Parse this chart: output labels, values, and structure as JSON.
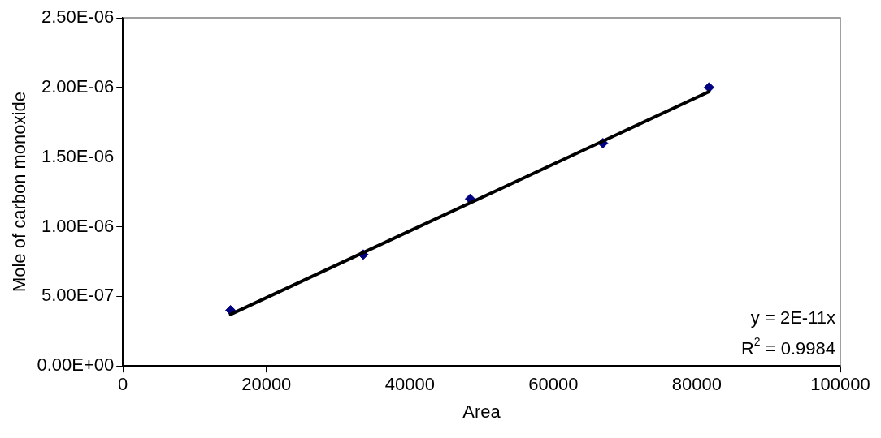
{
  "chart_data": {
    "type": "scatter",
    "xlabel": "Area",
    "ylabel": "Mole of carbon monoxide",
    "xlim": [
      0,
      100000
    ],
    "xticks": [
      0,
      20000,
      40000,
      60000,
      80000,
      100000
    ],
    "ylim": [
      0,
      2.5e-06
    ],
    "yticks": [
      {
        "value": 0,
        "label": "0.00E+00"
      },
      {
        "value": 5e-07,
        "label": "5.00E-07"
      },
      {
        "value": 1e-06,
        "label": "1.00E-06"
      },
      {
        "value": 1.5e-06,
        "label": "1.50E-06"
      },
      {
        "value": 2e-06,
        "label": "2.00E-06"
      },
      {
        "value": 2.5e-06,
        "label": "2.50E-06"
      }
    ],
    "grid": false,
    "legend": false,
    "series": [
      {
        "marker": "diamond",
        "color": "#000080",
        "x": [
          15000,
          33500,
          48400,
          66900,
          81700
        ],
        "values": [
          4e-07,
          8e-07,
          1.2e-06,
          1.6e-06,
          2e-06
        ]
      },
      {
        "type": "line",
        "marker": "none",
        "color": "#000000",
        "x": [
          15000,
          81700
        ],
        "values": [
          3.7e-07,
          1.97e-06
        ]
      }
    ],
    "annotations": [
      "y = 2E-11x",
      "R$^{2}$ = 0.9984"
    ]
  }
}
